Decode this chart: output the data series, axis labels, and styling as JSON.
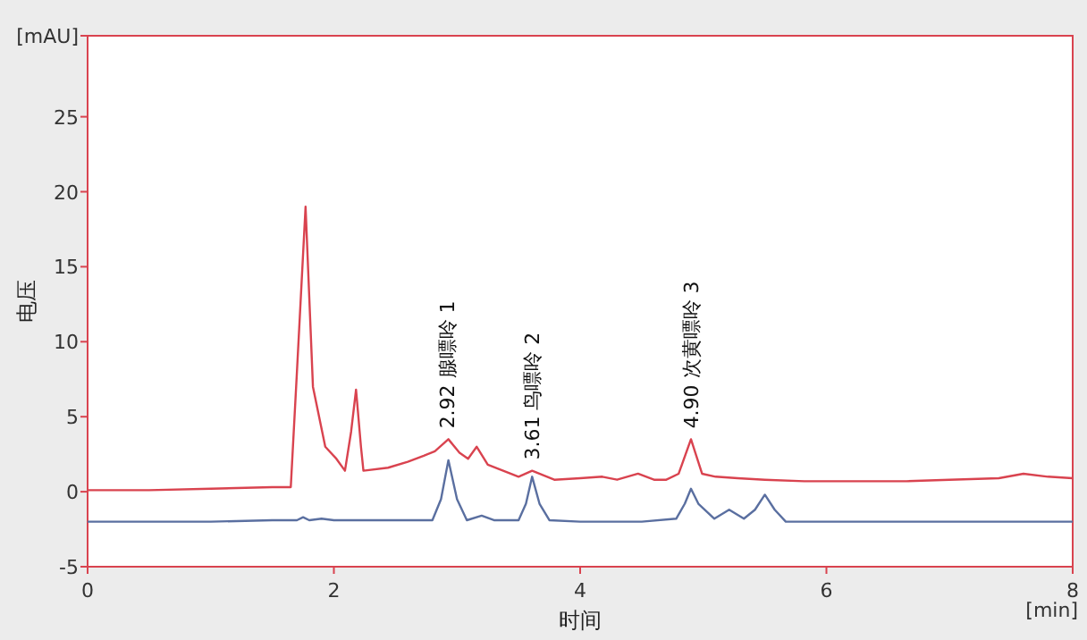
{
  "chart_data": {
    "type": "line",
    "xlabel": "时间",
    "ylabel": "电压",
    "xlim": [
      0,
      8
    ],
    "ylim": [
      -5,
      30.4
    ],
    "xticks": [
      0,
      2,
      4,
      6,
      8
    ],
    "yticks": [
      -5,
      0,
      5,
      10,
      15,
      20,
      25,
      {
        "value": 30.4,
        "label": "[mAU]"
      }
    ],
    "grid": false,
    "marker": "none",
    "line_style": "solid",
    "series": [
      {
        "color": "#d9434f",
        "x": [
          0,
          0.5,
          1.0,
          1.5,
          1.65,
          1.7,
          1.77,
          1.83,
          1.93,
          2.02,
          2.09,
          2.14,
          2.18,
          2.22,
          2.24,
          2.44,
          2.6,
          2.73,
          2.82,
          2.93,
          3.02,
          3.09,
          3.16,
          3.25,
          3.5,
          3.61,
          3.79,
          4.0,
          4.18,
          4.3,
          4.47,
          4.6,
          4.7,
          4.8,
          4.9,
          4.99,
          5.1,
          5.28,
          5.5,
          5.82,
          6.2,
          6.65,
          7.0,
          7.4,
          7.6,
          7.8,
          8.0
        ],
        "values": [
          0.1,
          0.1,
          0.2,
          0.3,
          0.3,
          8,
          19,
          7,
          3,
          2.2,
          1.4,
          4,
          6.8,
          3,
          1.4,
          1.6,
          2.0,
          2.4,
          2.7,
          3.5,
          2.6,
          2.2,
          3.0,
          1.8,
          1.0,
          1.4,
          0.8,
          0.9,
          1.0,
          0.8,
          1.2,
          0.8,
          0.8,
          1.2,
          3.5,
          1.2,
          1.0,
          0.9,
          0.8,
          0.7,
          0.7,
          0.7,
          0.8,
          0.9,
          1.2,
          1.0,
          0.9
        ]
      },
      {
        "color": "#5a6fa0",
        "x": [
          0,
          0.5,
          1.0,
          1.5,
          1.7,
          1.75,
          1.8,
          1.9,
          2.0,
          2.5,
          2.8,
          2.87,
          2.93,
          3.0,
          3.08,
          3.2,
          3.3,
          3.5,
          3.56,
          3.61,
          3.67,
          3.75,
          4.0,
          4.5,
          4.78,
          4.85,
          4.9,
          4.96,
          5.09,
          5.21,
          5.33,
          5.42,
          5.5,
          5.58,
          5.67,
          6.0,
          7.0,
          8.0
        ],
        "values": [
          -2.0,
          -2.0,
          -2.0,
          -1.9,
          -1.9,
          -1.7,
          -1.9,
          -1.8,
          -1.9,
          -1.9,
          -1.9,
          -0.5,
          2.1,
          -0.5,
          -1.9,
          -1.6,
          -1.9,
          -1.9,
          -0.8,
          1.0,
          -0.8,
          -1.9,
          -2.0,
          -2.0,
          -1.8,
          -0.8,
          0.2,
          -0.8,
          -1.8,
          -1.2,
          -1.8,
          -1.2,
          -0.2,
          -1.2,
          -2.0,
          -2.0,
          -2.0,
          -2.0
        ]
      }
    ],
    "annotations": [
      {
        "text": "2.92 腺嘌呤  1",
        "x": 2.92,
        "y": 3.5
      },
      {
        "text": "3.61 鸟嘌呤  2",
        "x": 3.61,
        "y": 1.4
      },
      {
        "text": "4.90 次黄嘌呤  3",
        "x": 4.9,
        "y": 3.5
      },
      "[min]"
    ]
  }
}
